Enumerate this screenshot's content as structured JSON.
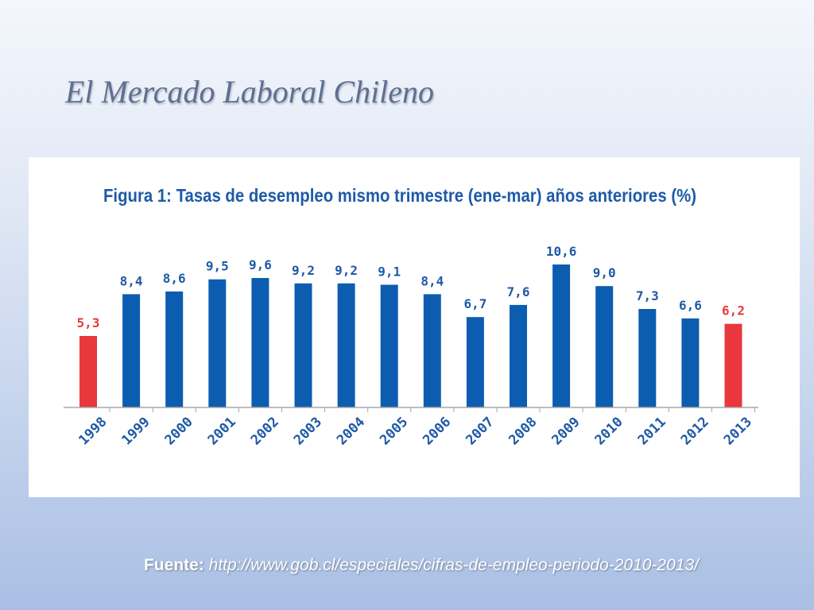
{
  "slide": {
    "title": "El Mercado Laboral Chileno",
    "source_label": "Fuente:",
    "source_url": "http://www.gob.cl/especiales/cifras-de-empleo-periodo-2010-2013/"
  },
  "colors": {
    "normal_bar": "#0c5db0",
    "highlight_bar": "#e8383d",
    "normal_label": "#1f5aa6",
    "highlight_label": "#e8383d",
    "title_text": "#1f5aa6"
  },
  "chart_data": {
    "type": "bar",
    "title": "Figura 1: Tasas de desempleo mismo trimestre (ene-mar) años anteriores (%)",
    "categories": [
      "1998",
      "1999",
      "2000",
      "2001",
      "2002",
      "2003",
      "2004",
      "2005",
      "2006",
      "2007",
      "2008",
      "2009",
      "2010",
      "2011",
      "2012",
      "2013"
    ],
    "values": [
      5.3,
      8.4,
      8.6,
      9.5,
      9.6,
      9.2,
      9.2,
      9.1,
      8.4,
      6.7,
      7.6,
      10.6,
      9.0,
      7.3,
      6.6,
      6.2
    ],
    "value_labels": [
      "5,3",
      "8,4",
      "8,6",
      "9,5",
      "9,6",
      "9,2",
      "9,2",
      "9,1",
      "8,4",
      "6,7",
      "7,6",
      "10,6",
      "9,0",
      "7,3",
      "6,6",
      "6,2"
    ],
    "highlighted": [
      "1998",
      "2013"
    ],
    "xlabel": "",
    "ylabel": "",
    "ylim": [
      0,
      10.6
    ],
    "grid": false,
    "legend": "none"
  }
}
